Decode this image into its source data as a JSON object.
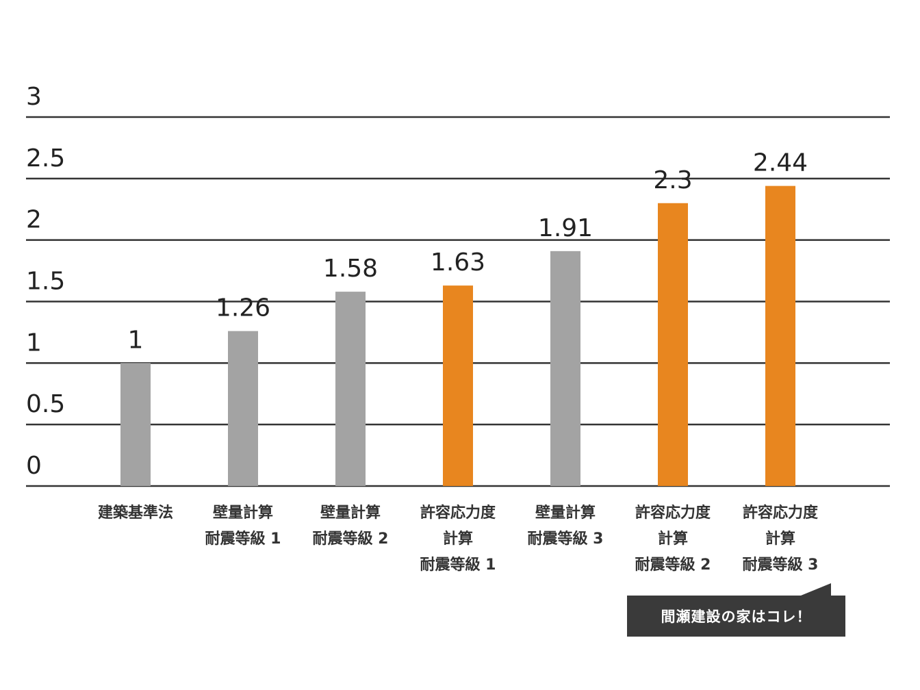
{
  "chart_data": {
    "type": "bar",
    "categories": [
      [
        "建築基準法"
      ],
      [
        "壁量計算",
        "耐震等級 1"
      ],
      [
        "壁量計算",
        "耐震等級 2"
      ],
      [
        "許容応力度",
        "計算",
        "耐震等級 1"
      ],
      [
        "壁量計算",
        "耐震等級 3"
      ],
      [
        "許容応力度",
        "計算",
        "耐震等級 2"
      ],
      [
        "許容応力度",
        "計算",
        "耐震等級 3"
      ]
    ],
    "values": [
      1,
      1.26,
      1.58,
      1.63,
      1.91,
      2.3,
      2.44
    ],
    "value_labels": [
      "1",
      "1.26",
      "1.58",
      "1.63",
      "1.91",
      "2.3",
      "2.44"
    ],
    "bar_colors": [
      "#a3a3a3",
      "#a3a3a3",
      "#a3a3a3",
      "#e8861f",
      "#a3a3a3",
      "#e8861f",
      "#e8861f"
    ],
    "yticks": [
      "0",
      "0.5",
      "1",
      "1.5",
      "2",
      "2.5",
      "3"
    ],
    "ylim": [
      0,
      3
    ],
    "grid": true,
    "title": "",
    "xlabel": "",
    "ylabel": ""
  },
  "callout": {
    "text": "間瀬建設の家はコレ！",
    "background": "#3a3a3a"
  }
}
